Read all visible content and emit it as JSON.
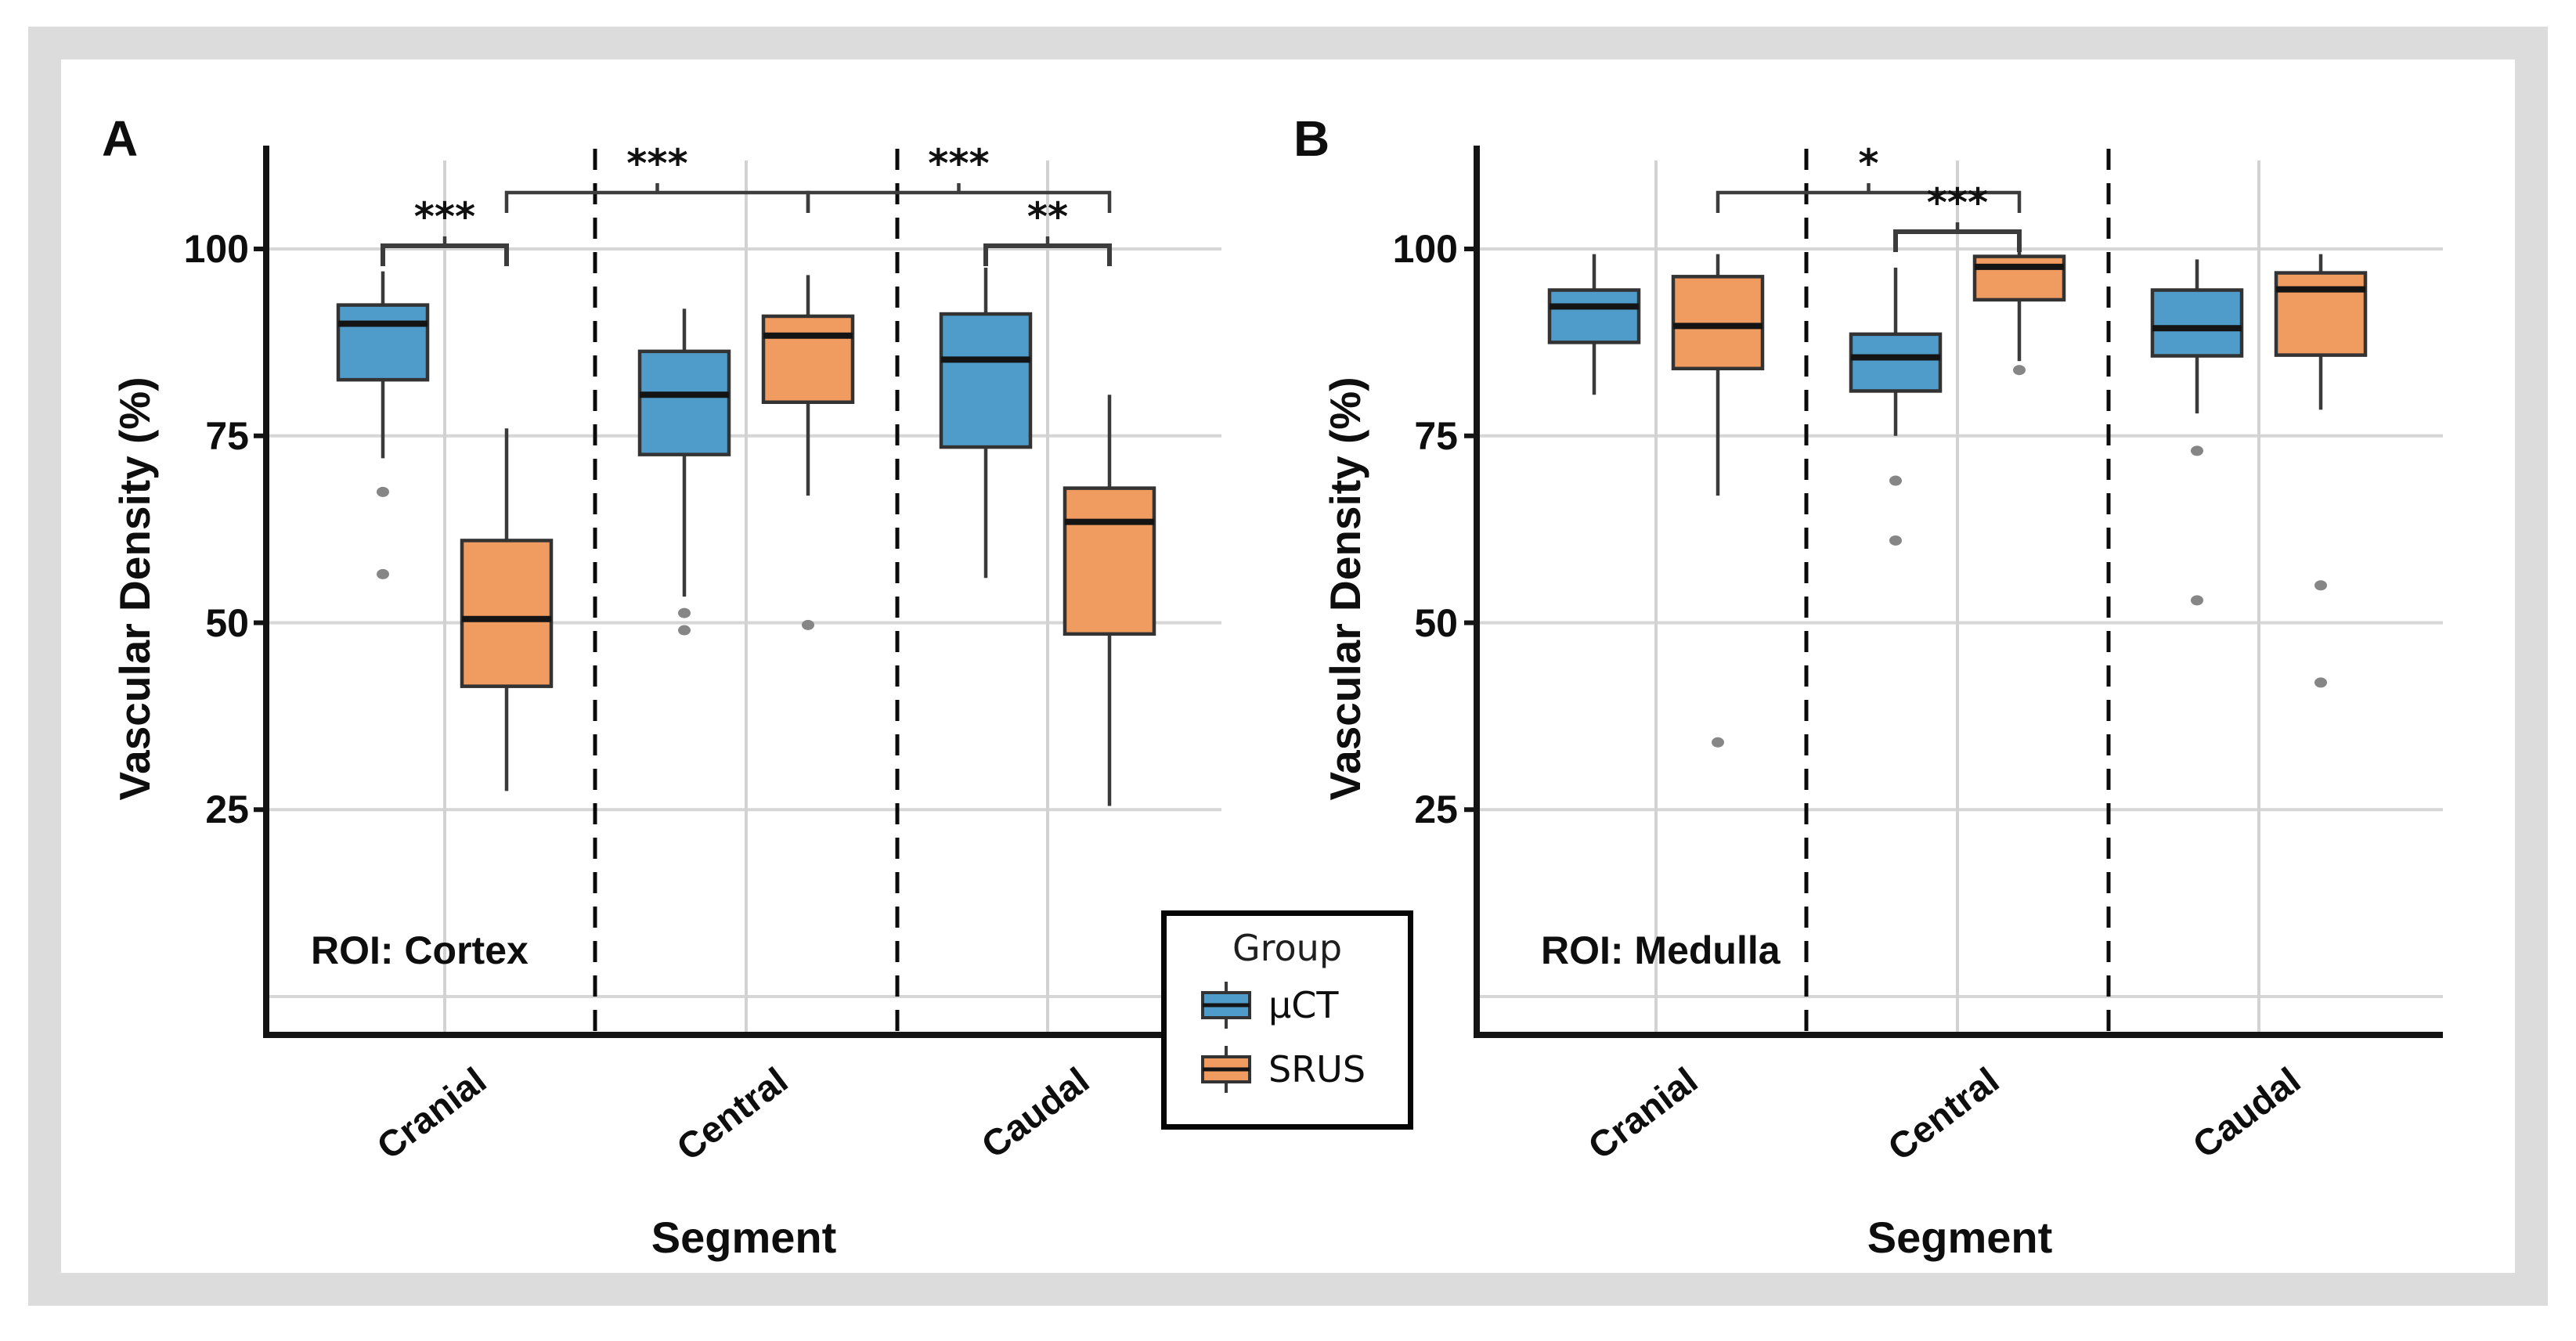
{
  "figure": {
    "frame_color": "#dcdcdc",
    "background": "#ffffff"
  },
  "legend": {
    "title": "Group",
    "items": [
      {
        "label": "μCT",
        "color": "#4f9cca"
      },
      {
        "label": "SRUS",
        "color": "#f09b60"
      }
    ]
  },
  "chart_data": {
    "type": "box",
    "ylabel": "Vascular Density (%)",
    "xlabel": "Segment",
    "yticks": [
      100,
      75,
      50,
      25
    ],
    "gridlines": [
      0,
      25,
      50,
      75,
      100
    ],
    "ylim": [
      -5,
      115
    ],
    "grid": "on",
    "legend_position": "bottom-center-between-panels",
    "categories": [
      "Cranial",
      "Central",
      "Caudal"
    ],
    "series_names": [
      "μCT",
      "SRUS"
    ],
    "colors": {
      "μCT": "#4f9cca",
      "SRUS": "#f09b60"
    },
    "style": {
      "edge_color": "#333333",
      "median_color": "#141414",
      "whisker_color": "#3a3a3a",
      "outlier_color": "#868686",
      "gridline_color": "#d6d6d6",
      "divider_color": "#0a0a0a",
      "spine_color": "#141414",
      "bracket_color": "#3c3c3c"
    },
    "panels": [
      {
        "label": "A",
        "roi": "ROI: Cortex",
        "groups": [
          {
            "category": "Cranial",
            "boxes": [
              {
                "series": "μCT",
                "whislo": 72,
                "q1": 82.5,
                "med": 90,
                "q3": 92.5,
                "whishi": 97,
                "fliers": [
                  67.5,
                  56.5
                ]
              },
              {
                "series": "SRUS",
                "whislo": 27.5,
                "q1": 41.5,
                "med": 50.5,
                "q3": 61,
                "whishi": 76,
                "fliers": []
              }
            ]
          },
          {
            "category": "Central",
            "boxes": [
              {
                "series": "μCT",
                "whislo": 53.5,
                "q1": 72.5,
                "med": 80.5,
                "q3": 86.3,
                "whishi": 92,
                "fliers": [
                  51.3,
                  49
                ]
              },
              {
                "series": "SRUS",
                "whislo": 67,
                "q1": 79.5,
                "med": 88.4,
                "q3": 91,
                "whishi": 96.5,
                "fliers": [
                  49.7
                ]
              }
            ]
          },
          {
            "category": "Caudal",
            "boxes": [
              {
                "series": "μCT",
                "whislo": 56,
                "q1": 73.5,
                "med": 85.2,
                "q3": 91.3,
                "whishi": 97.5,
                "fliers": []
              },
              {
                "series": "SRUS",
                "whislo": 25.5,
                "q1": 48.5,
                "med": 63.5,
                "q3": 68,
                "whishi": 80.5,
                "fliers": []
              }
            ]
          }
        ],
        "brackets": [
          {
            "label": "***",
            "from": [
              "Cranial",
              "μCT"
            ],
            "to": [
              "Cranial",
              "SRUS"
            ],
            "tier": "pair"
          },
          {
            "label": "***",
            "from": [
              "Cranial",
              "SRUS"
            ],
            "to": [
              "Central",
              "SRUS"
            ],
            "tier": "upper"
          },
          {
            "label": "***",
            "from": [
              "Central",
              "SRUS"
            ],
            "to": [
              "Caudal",
              "SRUS"
            ],
            "tier": "upper"
          },
          {
            "label": "**",
            "from": [
              "Caudal",
              "μCT"
            ],
            "to": [
              "Caudal",
              "SRUS"
            ],
            "tier": "pair"
          }
        ]
      },
      {
        "label": "B",
        "roi": "ROI: Medulla",
        "groups": [
          {
            "category": "Cranial",
            "boxes": [
              {
                "series": "μCT",
                "whislo": 80.5,
                "q1": 87.5,
                "med": 92.3,
                "q3": 94.5,
                "whishi": 99.3,
                "fliers": []
              },
              {
                "series": "SRUS",
                "whislo": 67,
                "q1": 84,
                "med": 89.7,
                "q3": 96.3,
                "whishi": 99.3,
                "fliers": [
                  34
                ]
              }
            ]
          },
          {
            "category": "Central",
            "boxes": [
              {
                "series": "μCT",
                "whislo": 75,
                "q1": 81,
                "med": 85.5,
                "q3": 88.6,
                "whishi": 97.5,
                "fliers": [
                  69,
                  61
                ]
              },
              {
                "series": "SRUS",
                "whislo": 85,
                "q1": 93.2,
                "med": 97.6,
                "q3": 99,
                "whishi": 99.8,
                "fliers": [
                  83.8
                ]
              }
            ]
          },
          {
            "category": "Caudal",
            "boxes": [
              {
                "series": "μCT",
                "whislo": 78,
                "q1": 85.7,
                "med": 89.4,
                "q3": 94.5,
                "whishi": 98.6,
                "fliers": [
                  73,
                  53
                ]
              },
              {
                "series": "SRUS",
                "whislo": 78.5,
                "q1": 85.8,
                "med": 94.6,
                "q3": 96.8,
                "whishi": 99.3,
                "fliers": [
                  55,
                  42
                ]
              }
            ]
          }
        ],
        "brackets": [
          {
            "label": "*",
            "from": [
              "Cranial",
              "SRUS"
            ],
            "to": [
              "Central",
              "SRUS"
            ],
            "tier": "upper"
          },
          {
            "label": "***",
            "from": [
              "Central",
              "μCT"
            ],
            "to": [
              "Central",
              "SRUS"
            ],
            "tier": "mid"
          }
        ]
      }
    ]
  }
}
